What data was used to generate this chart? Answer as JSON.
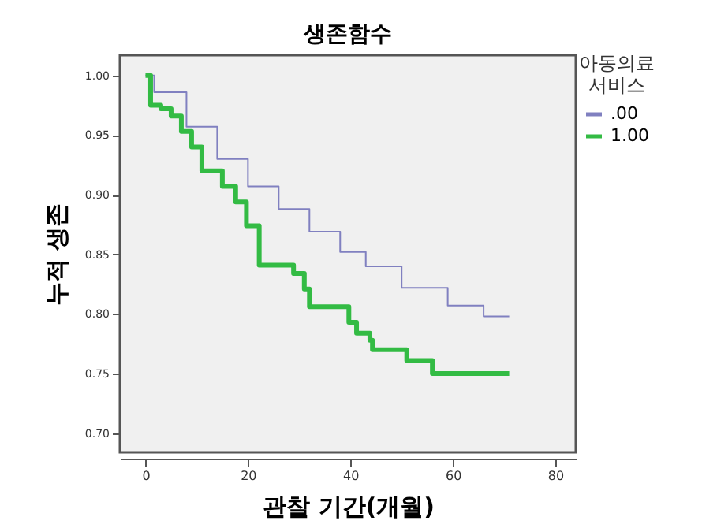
{
  "chart_data": {
    "type": "step",
    "title": "생존함수",
    "xlabel": "관찰 기간(개월)",
    "ylabel": "누적 생존",
    "legend_title": "아동의료 서비스",
    "legend": "top right",
    "grid": false,
    "marker": "none",
    "line_style": "solid",
    "xlim": [
      -5,
      84
    ],
    "ylim": [
      0.684,
      1.017
    ],
    "xticks": [
      0,
      20,
      40,
      60,
      80
    ],
    "yticks": [
      {
        "value": 0.7,
        "label": "0.70"
      },
      {
        "value": 0.75,
        "label": "0.75"
      },
      {
        "value": 0.8,
        "label": "0.80"
      },
      {
        "value": 0.85,
        "label": "0.85"
      },
      {
        "value": 0.9,
        "label": "0.90"
      },
      {
        "value": 0.95,
        "label": "0.95"
      },
      {
        "value": 1.0,
        "label": "1.00"
      }
    ],
    "series": [
      {
        "name": ".00",
        "color": "#8080c0",
        "x": [
          0,
          1.7,
          8,
          14,
          20,
          26,
          32,
          38,
          43,
          50,
          59,
          66,
          71
        ],
        "values": [
          1.0,
          0.986,
          0.957,
          0.93,
          0.907,
          0.888,
          0.869,
          0.852,
          0.84,
          0.822,
          0.807,
          0.798,
          0.798
        ]
      },
      {
        "name": "1.00",
        "color": "#33bb44",
        "x": [
          0,
          1,
          3,
          5,
          7,
          9,
          11,
          15,
          17.6,
          19.7,
          22.2,
          28.9,
          31,
          32,
          39.7,
          41.2,
          43.8,
          44.3,
          51,
          56,
          71
        ],
        "values": [
          1.0,
          0.975,
          0.972,
          0.966,
          0.953,
          0.94,
          0.92,
          0.907,
          0.894,
          0.874,
          0.841,
          0.834,
          0.821,
          0.806,
          0.793,
          0.784,
          0.778,
          0.77,
          0.761,
          0.75,
          0.75
        ]
      }
    ]
  }
}
